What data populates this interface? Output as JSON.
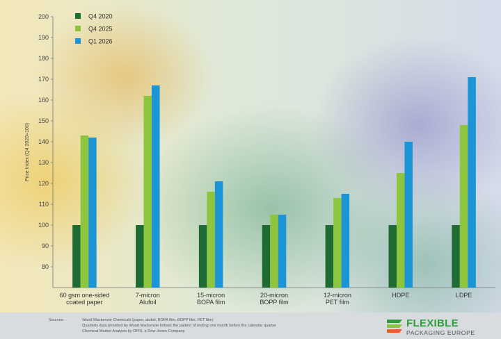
{
  "chart_data": {
    "type": "bar",
    "title": "",
    "xlabel": "",
    "ylabel": "Price Index (Q4 2020=100)",
    "ylim": [
      70,
      200
    ],
    "yticks": [
      80,
      90,
      100,
      110,
      120,
      130,
      140,
      150,
      160,
      170,
      180,
      190,
      200
    ],
    "grid": false,
    "legend_position": "top-left",
    "categories": [
      [
        "60 gsm one-sided",
        "coated paper"
      ],
      [
        "7-micron",
        "Alufoil"
      ],
      [
        "15-micron",
        "BOPA film"
      ],
      [
        "20-micron",
        "BOPP film"
      ],
      [
        "12-micron",
        "PET film"
      ],
      [
        "HDPE"
      ],
      [
        "LDPE"
      ]
    ],
    "series": [
      {
        "name": "Q4 2020",
        "color": "#1f6b34",
        "values": [
          100,
          100,
          100,
          100,
          100,
          100,
          100
        ]
      },
      {
        "name": "Q4 2025",
        "color": "#8dc53e",
        "values": [
          143,
          162,
          116,
          105,
          113,
          125,
          148
        ]
      },
      {
        "name": "Q1 2026",
        "color": "#1b95d6",
        "values": [
          142,
          167,
          121,
          105,
          115,
          140,
          171
        ]
      }
    ]
  },
  "footer": {
    "sources_label": "Sources:",
    "sources": [
      "Wood Mackenzie Chemicals (paper, alufoil, BOPA film, BOPP film, PET film)",
      "Quarterly data provided by Wood Mackenzie follows the pattern of ending one month before the calendar quarter",
      "Chemical Market Analysis by OPIS, a Dow Jones Company"
    ]
  },
  "logo": {
    "line1": "FLEXIBLE",
    "line2": "PACKAGING EUROPE",
    "colors": [
      "#2f9a3f",
      "#8dc53e",
      "#e0642a"
    ]
  }
}
